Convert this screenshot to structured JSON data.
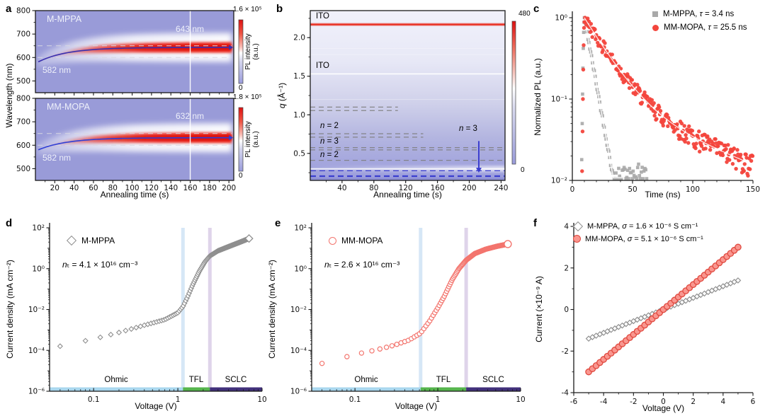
{
  "figure_panels": [
    "a",
    "b",
    "c",
    "d",
    "e",
    "f"
  ],
  "colors": {
    "heat_base": "#999bd8",
    "heat_red": "#e8281e",
    "blue_line": "#3b3ecf",
    "gray_series": "#a9a9a9",
    "red_series": "#f3453c",
    "salmon": "#f3756e",
    "ohmic_bar": "#a9d7ee",
    "tfl_bar": "#56b54d",
    "sclc_bar": "#41307b",
    "band_blue": "#cfe3f4",
    "band_purple": "#dbcfe8"
  },
  "chart_data": [
    {
      "panel": "a",
      "type": "heatmap",
      "xlabel": "Annealing time (s)",
      "ylabel": "Wavelength (nm)",
      "x_range": [
        0,
        205
      ],
      "x_ticks": [
        20,
        40,
        60,
        80,
        100,
        120,
        140,
        160,
        180,
        200
      ],
      "y_range": [
        450,
        800
      ],
      "y_ticks": [
        500,
        600,
        700,
        800
      ],
      "subpanels": [
        {
          "sample": "M-MPPA",
          "initial_peak_nm": 582,
          "final_peak_nm": 643,
          "initial_label": "582 nm",
          "final_label": "643 nm",
          "dashed_guides_nm": [
            600,
            650
          ],
          "marker_line_s": 160,
          "curve_color": "#3a2fae",
          "colorbar": {
            "max_label": "1.6 × 10⁵",
            "min_label": "0",
            "title_line1": "PL intensity",
            "title_line2": "(a.u.)"
          }
        },
        {
          "sample": "MM-MOPA",
          "initial_peak_nm": 582,
          "final_peak_nm": 632,
          "initial_label": "582 nm",
          "final_label": "632 nm",
          "dashed_guides_nm": [
            600,
            650
          ],
          "marker_line_s": 160,
          "curve_color": "#2f3fd6",
          "colorbar": {
            "max_label": "1.8 × 10⁵",
            "min_label": "0",
            "title_line1": "PL intensity",
            "title_line2": "(a.u.)"
          }
        }
      ]
    },
    {
      "panel": "b",
      "type": "heatmap",
      "xlabel": "Annealing time (s)",
      "ylabel_italic": "q",
      "ylabel_rest": " (Å⁻¹)",
      "x_range": [
        0,
        245
      ],
      "x_ticks": [
        40,
        80,
        120,
        160,
        200,
        240
      ],
      "y_range": [
        0.15,
        2.35
      ],
      "y_ticks": [
        0.5,
        1.0,
        1.5,
        2.0
      ],
      "colorbar": {
        "max_label": "480",
        "min_label": "0"
      },
      "ito_lines": [
        {
          "q": 2.17,
          "label": "ITO",
          "style": "red"
        },
        {
          "q": 1.53,
          "label": "ITO",
          "style": "white"
        }
      ],
      "gray_dashed": [
        {
          "q": 1.1,
          "frac": 0.45
        },
        {
          "q": 1.055,
          "frac": 0.45
        },
        {
          "q": 0.755,
          "frac": 0.58
        },
        {
          "q": 0.71,
          "frac": 0.58
        },
        {
          "q": 0.575,
          "frac": 1
        },
        {
          "q": 0.545,
          "frac": 1
        },
        {
          "q": 0.41,
          "frac": 1
        }
      ],
      "labels": [
        {
          "i": "n",
          "rest": " = 2",
          "q": 0.8
        },
        {
          "i": "n",
          "rest": " = 3",
          "q": 0.625
        },
        {
          "i": "n",
          "rest": " = 2",
          "q": 0.46
        }
      ],
      "red_fading_line_q": 0.365,
      "blue_dashed": [
        {
          "q": 0.275,
          "w": 1.3
        },
        {
          "q": 0.205,
          "w": 2.2
        }
      ],
      "arrow": {
        "t": 212,
        "q_from": 0.66,
        "q_to": 0.25,
        "label_i": "n",
        "label_rest": " = 3"
      }
    },
    {
      "panel": "c",
      "type": "scatter",
      "xlabel": "Time (ns)",
      "ylabel": "Normalized PL (a.u.)",
      "x_range": [
        0,
        150
      ],
      "x_ticks": [
        0,
        50,
        100,
        150
      ],
      "y_log_range": [
        0.01,
        1
      ],
      "y_tick_labels": [
        "10⁰",
        "10⁻¹",
        "10⁻²"
      ],
      "series": [
        {
          "name_pre": "M-MPPA, ",
          "sym": "τ",
          "name_post": " = 3.4 ns",
          "tau_ns": 3.4,
          "marker": "square",
          "color": "#a9a9a9",
          "decay": {
            "t0": 10,
            "tau": 5.3,
            "floor": 0.0115,
            "t_end": 62
          }
        },
        {
          "name_pre": "MM-MOPA, ",
          "sym": "τ",
          "name_post": " = 25.5 ns",
          "tau_ns": 25.5,
          "marker": "circle",
          "color": "#f3453c",
          "decay": {
            "t0": 10,
            "a1": 0.9,
            "tau1": 17,
            "a2": 0.1,
            "tau2": 75,
            "t_end": 150
          }
        }
      ]
    },
    {
      "panel": "d",
      "type": "scatter",
      "xlabel": "Voltage (V)",
      "ylabel": "Current density (mA cm⁻²)",
      "x_log_range": [
        0.03,
        10
      ],
      "x_tick_labels": [
        "0.1",
        "1",
        "10"
      ],
      "y_log_range": [
        1e-06,
        100
      ],
      "y_tick_labels": [
        "10²",
        "10⁰",
        "10⁻²",
        "10⁻⁴",
        "10⁻⁶"
      ],
      "series_name": "M-MPPA",
      "nt_i": "n",
      "nt_rest": "ₜ = 4.1 × 10¹⁶ cm⁻³",
      "marker": "diamond",
      "marker_color": "#8f8f8f",
      "regions": [
        {
          "label": "Ohmic",
          "from_v": 0.03,
          "to_v": 1.15,
          "color": "#a9d7ee"
        },
        {
          "label": "TFL",
          "from_v": 1.15,
          "to_v": 2.4,
          "color": "#56b54d"
        },
        {
          "label": "SCLC",
          "from_v": 2.4,
          "to_v": 10,
          "color": "#41307b"
        }
      ],
      "anchors": [
        [
          0.04,
          0.00016
        ],
        [
          0.1,
          0.00036
        ],
        [
          0.2,
          0.00075
        ],
        [
          0.4,
          0.0017
        ],
        [
          0.7,
          0.0032
        ],
        [
          1.0,
          0.007
        ],
        [
          1.15,
          0.014
        ],
        [
          1.3,
          0.04
        ],
        [
          1.5,
          0.16
        ],
        [
          1.8,
          0.75
        ],
        [
          2.1,
          2.2
        ],
        [
          2.4,
          4.2
        ],
        [
          3.0,
          7.5
        ],
        [
          4.0,
          12
        ],
        [
          5.5,
          20
        ],
        [
          7.0,
          30
        ]
      ],
      "v_step": 0.04,
      "v_max": 7.0
    },
    {
      "panel": "e",
      "type": "scatter",
      "xlabel": "Voltage (V)",
      "ylabel": "Current density (mA cm⁻²)",
      "x_log_range": [
        0.03,
        10
      ],
      "x_tick_labels": [
        "0.1",
        "1",
        "10"
      ],
      "y_log_range": [
        1e-06,
        100
      ],
      "y_tick_labels": [
        "10²",
        "10⁰",
        "10⁻²",
        "10⁻⁴",
        "10⁻⁶"
      ],
      "series_name": "MM-MOPA",
      "nt_i": "n",
      "nt_rest": "ₜ = 2.6 × 10¹⁶ cm⁻³",
      "marker": "circle",
      "marker_color": "#f3756e",
      "regions": [
        {
          "label": "Ohmic",
          "from_v": 0.03,
          "to_v": 0.62,
          "color": "#a9d7ee"
        },
        {
          "label": "TFL",
          "from_v": 0.62,
          "to_v": 2.2,
          "color": "#56b54d"
        },
        {
          "label": "SCLC",
          "from_v": 2.2,
          "to_v": 10,
          "color": "#41307b"
        }
      ],
      "anchors": [
        [
          0.04,
          2.3e-05
        ],
        [
          0.1,
          6.3e-05
        ],
        [
          0.18,
          0.000105
        ],
        [
          0.3,
          0.00018
        ],
        [
          0.45,
          0.00032
        ],
        [
          0.62,
          0.0007
        ],
        [
          0.8,
          0.0028
        ],
        [
          1.0,
          0.012
        ],
        [
          1.2,
          0.045
        ],
        [
          1.5,
          0.3
        ],
        [
          1.8,
          1.0
        ],
        [
          2.2,
          2.6
        ],
        [
          2.8,
          5.5
        ],
        [
          3.8,
          9.0
        ],
        [
          5.2,
          12.5
        ],
        [
          7.0,
          16
        ]
      ],
      "v_step": 0.04,
      "v_max": 7.0
    },
    {
      "panel": "f",
      "type": "scatter",
      "xlabel": "Voltage (V)",
      "ylabel": "Current (×10⁻⁹ A)",
      "x_range": [
        -6,
        6
      ],
      "x_ticks": [
        -6,
        -4,
        -2,
        0,
        2,
        4,
        6
      ],
      "y_range": [
        -4,
        4
      ],
      "y_ticks": [
        -4,
        -2,
        0,
        2,
        4
      ],
      "series": [
        {
          "name_pre": "M-MPPA, ",
          "sym": "σ",
          "name_post": " = 1.6 × 10⁻⁶ S cm⁻¹",
          "slope_nA_per_V": 0.28,
          "marker": "diamond",
          "v_min": -5,
          "v_max": 5,
          "v_step": 0.25
        },
        {
          "name_pre": "MM-MOPA, ",
          "sym": "σ",
          "name_post": " = 5.1 × 10⁻⁶ S cm⁻¹",
          "slope_nA_per_V": 0.6,
          "marker": "circle",
          "v_min": -5,
          "v_max": 5,
          "v_step": 0.25
        }
      ]
    }
  ]
}
